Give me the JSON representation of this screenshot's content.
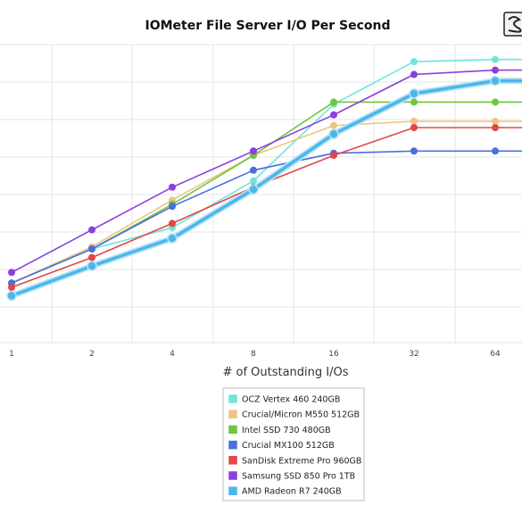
{
  "chart_data": {
    "type": "line",
    "title": "IOMeter File Server I/O Per Second",
    "xlabel": "# of Outstanding I/Os",
    "ylabel": "",
    "categories": [
      "1",
      "2",
      "4",
      "8",
      "16",
      "32",
      "64"
    ],
    "ylim": [
      0,
      7
    ],
    "grid": true,
    "legend_position": "bottom",
    "series": [
      {
        "name": "OCZ Vertex 460 240GB",
        "color": "#6ee6d9",
        "values": [
          1.4,
          2.2,
          2.7,
          3.8,
          5.6,
          6.6,
          6.65
        ]
      },
      {
        "name": "Crucial/Micron M550 512GB",
        "color": "#f0c383",
        "values": [
          1.4,
          2.25,
          3.35,
          4.4,
          5.1,
          5.2,
          5.2
        ]
      },
      {
        "name": "Intel SSD 730 480GB",
        "color": "#6fc63e",
        "values": [
          1.4,
          2.2,
          3.25,
          4.4,
          5.65,
          5.65,
          5.65
        ]
      },
      {
        "name": "Crucial MX100 512GB",
        "color": "#4a6fe0",
        "values": [
          1.4,
          2.2,
          3.2,
          4.05,
          4.45,
          4.5,
          4.5
        ]
      },
      {
        "name": "SanDisk Extreme Pro 960GB",
        "color": "#e24646",
        "values": [
          1.3,
          2.0,
          2.8,
          3.65,
          4.4,
          5.05,
          5.05
        ]
      },
      {
        "name": "Samsung SSD 850 Pro 1TB",
        "color": "#8a3fe0",
        "values": [
          1.65,
          2.65,
          3.65,
          4.5,
          5.35,
          6.3,
          6.4
        ]
      },
      {
        "name": "AMD Radeon R7 240GB",
        "color": "#4cb6ea",
        "values": [
          1.1,
          1.8,
          2.45,
          3.6,
          4.9,
          5.85,
          6.15
        ]
      }
    ]
  }
}
